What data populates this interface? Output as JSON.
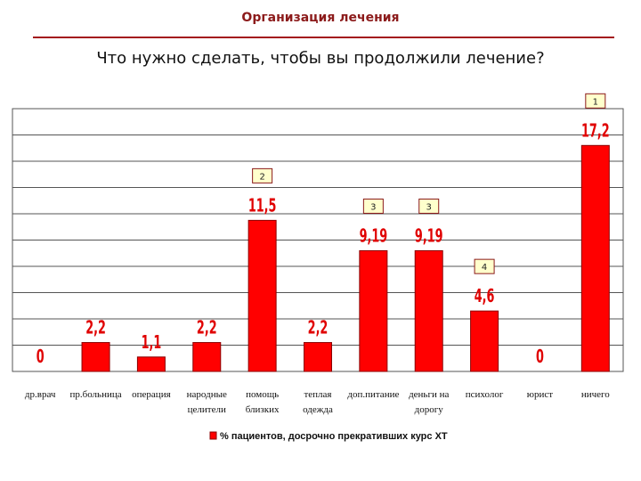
{
  "header": {
    "title": "Организация лечения"
  },
  "question": "Что нужно сделать, чтобы вы продолжили лечение?",
  "chart_data": {
    "type": "bar",
    "categories": [
      [
        "др.врач"
      ],
      [
        "пр.больница"
      ],
      [
        "операция"
      ],
      [
        "народные",
        "целители"
      ],
      [
        "помощь",
        "близких"
      ],
      [
        "теплая",
        "одежда"
      ],
      [
        "доп.питание"
      ],
      [
        "деньги на",
        "дорогу"
      ],
      [
        "психолог"
      ],
      [
        "юрист"
      ],
      [
        "ничего"
      ]
    ],
    "values": [
      0,
      2.2,
      1.1,
      2.2,
      11.5,
      2.2,
      9.19,
      9.19,
      4.6,
      0,
      17.2
    ],
    "value_labels": [
      "0",
      "2,2",
      "1,1",
      "2,2",
      "11,5",
      "2,2",
      "9,19",
      "9,19",
      "4,6",
      "0",
      "17,2"
    ],
    "rank_badges": [
      {
        "category_index": 10,
        "text": "1"
      },
      {
        "category_index": 4,
        "text": "2"
      },
      {
        "category_index": 6,
        "text": "3"
      },
      {
        "category_index": 7,
        "text": "3"
      },
      {
        "category_index": 8,
        "text": "4"
      }
    ],
    "series": [
      {
        "name": "% пациентов, досрочно прекративших курс ХТ",
        "values": [
          0,
          2.2,
          1.1,
          2.2,
          11.5,
          2.2,
          9.19,
          9.19,
          4.6,
          0,
          17.2
        ]
      }
    ],
    "ylim": [
      0,
      20
    ],
    "grid": true,
    "legend_position": "bottom",
    "colors": {
      "bar": "#ff0000",
      "bar_edge": "#8b0000",
      "label": "#e00000",
      "badge_bg": "#ffffcc",
      "badge_border": "#8b1a1a"
    }
  }
}
